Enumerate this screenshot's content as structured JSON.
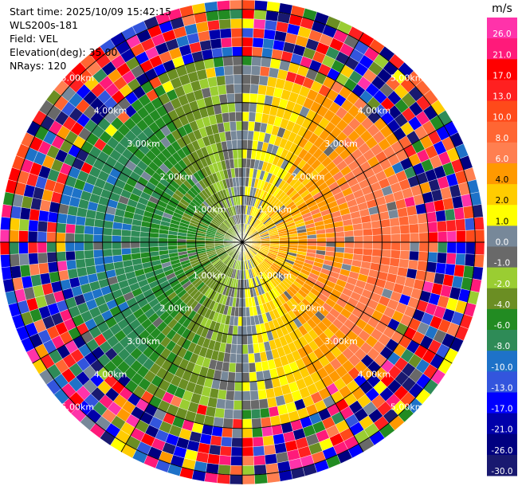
{
  "header": {
    "start_time": "Start time: 2025/10/09 15:42:15",
    "instrument": "WLS200s-181",
    "field": "Field: VEL",
    "elevation": "Elevation(deg): 35.00",
    "nrays": "NRays: 120"
  },
  "chart_data": {
    "type": "heatmap",
    "projection": "polar PPI (plan position indicator)",
    "field": "VEL",
    "n_rays": 120,
    "range_max_km": 5.2,
    "range_rings_km": [
      1,
      2,
      3,
      4,
      5
    ],
    "ring_labels": [
      "1.00km",
      "2.00km",
      "3.00km",
      "4.00km",
      "5.00km"
    ],
    "spokes_deg": [
      0,
      30,
      60,
      90,
      120,
      150,
      180,
      210,
      240,
      270,
      300,
      330
    ],
    "colorbar": {
      "unit": "m/s",
      "ticks": [
        "26.0",
        "21.0",
        "17.0",
        "13.0",
        "10.0",
        "8.0",
        "6.0",
        "4.0",
        "2.0",
        "1.0",
        "0.0",
        "-1.0",
        "-2.0",
        "-4.0",
        "-6.0",
        "-8.0",
        "-10.0",
        "-13.0",
        "-17.0",
        "-21.0",
        "-26.0",
        "-30.0"
      ],
      "colors": [
        "#ff33aa",
        "#ff1a7a",
        "#ff0000",
        "#ff2020",
        "#ff4a1a",
        "#ff6633",
        "#ff7f50",
        "#ff9900",
        "#ffcc00",
        "#ffff00",
        "#778899",
        "#696969",
        "#9acd32",
        "#6b8e23",
        "#228b22",
        "#2e8b57",
        "#1e72c8",
        "#3355dd",
        "#0000ff",
        "#0000aa",
        "#000080",
        "#191970"
      ]
    },
    "wind_pattern": {
      "description": "dipole: positive velocities east of centre, negative velocities west of centre, noise beyond about 4 km",
      "positive_side_deg": 90,
      "negative_side_deg": 270,
      "velocity_scale_mps": [
        -8,
        8
      ]
    }
  }
}
